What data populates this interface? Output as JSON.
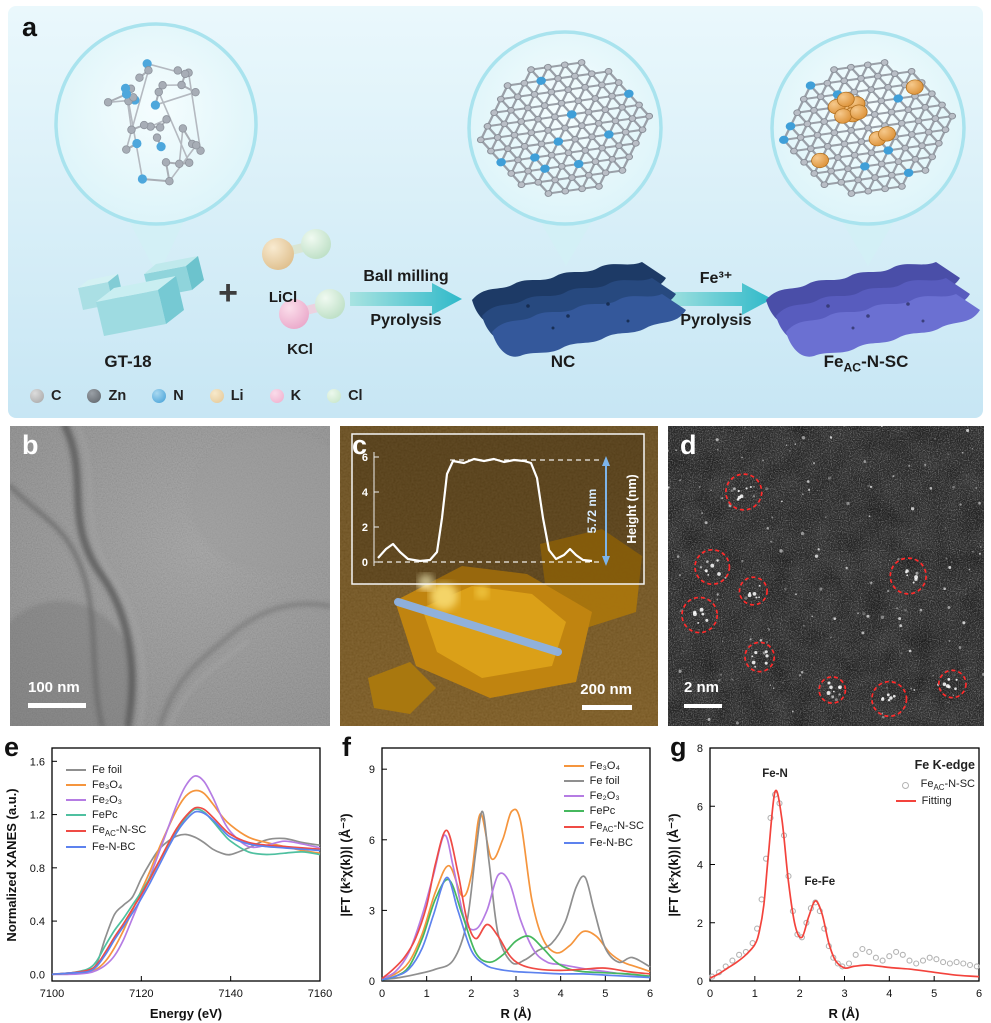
{
  "panel_a": {
    "letter": "a",
    "labels": {
      "precursor": "GT-18",
      "plus": "+",
      "salt1": "LiCl",
      "salt2": "KCl",
      "arrow1_top": "Ball milling",
      "arrow1_bottom": "Pyrolysis",
      "intermediate": "NC",
      "arrow2_top": "Fe³⁺",
      "arrow2_bottom": "Pyrolysis",
      "product": "Fe~AC~-N-SC"
    },
    "legend": [
      {
        "label": "C",
        "color": "#a3a3a3",
        "hi": "#dcdcdc"
      },
      {
        "label": "Zn",
        "color": "#5c6268",
        "hi": "#9aa0a6"
      },
      {
        "label": "N",
        "color": "#3f9ed6",
        "hi": "#a8d8f0"
      },
      {
        "label": "Li",
        "color": "#e3c694",
        "hi": "#f7e9cb"
      },
      {
        "label": "K",
        "color": "#eeaccb",
        "hi": "#fadcea"
      },
      {
        "label": "Cl",
        "color": "#c4e4c6",
        "hi": "#ecf8ed"
      }
    ]
  },
  "panel_b": {
    "letter": "b",
    "scale_bar": "100 nm"
  },
  "panel_c": {
    "letter": "c",
    "scale_bar": "200 nm",
    "inset": {
      "annotation": "5.72 nm",
      "axis_label": "Height (nm)",
      "ticks": [
        "6",
        "4",
        "2",
        "0"
      ]
    }
  },
  "panel_d": {
    "letter": "d",
    "scale_bar": "2 nm",
    "markers": [
      [
        0.24,
        0.22
      ],
      [
        0.14,
        0.47
      ],
      [
        0.1,
        0.63
      ],
      [
        0.27,
        0.55
      ],
      [
        0.29,
        0.77
      ],
      [
        0.52,
        0.88
      ],
      [
        0.7,
        0.91
      ],
      [
        0.9,
        0.86
      ],
      [
        0.76,
        0.5
      ]
    ]
  },
  "panel_letters": {
    "e": "e",
    "f": "f",
    "g": "g"
  },
  "chart_data": [
    {
      "id": "e",
      "type": "line",
      "title": "",
      "xlabel": "Energy (eV)",
      "ylabel": "Normalized XANES (a.u.)",
      "xlim": [
        7100,
        7160
      ],
      "ylim": [
        -0.05,
        1.7
      ],
      "xticks": [
        7100,
        7120,
        7140,
        7160
      ],
      "xtick_labels": [
        "7100",
        "7120",
        "7140",
        "7160"
      ],
      "yticks": [
        0.0,
        0.4,
        0.8,
        1.2,
        1.6
      ],
      "ytick_labels": [
        "0.0",
        "0.4",
        "0.8",
        "1.2",
        "1.6"
      ],
      "legend_position": "top-left",
      "grid": false,
      "series": [
        {
          "name": "Fe foil",
          "color": "#8f8f8f",
          "type": "line",
          "x": [
            7100,
            7104,
            7108,
            7110,
            7112,
            7114,
            7116,
            7118,
            7120,
            7122,
            7124,
            7126,
            7128,
            7130,
            7132,
            7134,
            7136,
            7138,
            7140,
            7144,
            7148,
            7152,
            7156,
            7160
          ],
          "y": [
            0.0,
            0.01,
            0.03,
            0.08,
            0.28,
            0.45,
            0.52,
            0.58,
            0.72,
            0.84,
            0.94,
            1.0,
            1.04,
            1.05,
            1.03,
            0.99,
            0.94,
            0.91,
            0.9,
            0.95,
            1.01,
            1.02,
            0.99,
            0.97
          ]
        },
        {
          "name": "Fe₃O₄",
          "color": "#f5953d",
          "type": "line",
          "x": [
            7100,
            7104,
            7108,
            7110,
            7112,
            7114,
            7116,
            7118,
            7120,
            7122,
            7124,
            7126,
            7128,
            7130,
            7132,
            7134,
            7136,
            7138,
            7140,
            7144,
            7148,
            7152,
            7156,
            7160
          ],
          "y": [
            0.0,
            0.01,
            0.02,
            0.04,
            0.1,
            0.2,
            0.33,
            0.48,
            0.63,
            0.78,
            0.95,
            1.1,
            1.24,
            1.34,
            1.38,
            1.36,
            1.28,
            1.19,
            1.12,
            1.03,
            0.99,
            0.96,
            0.93,
            0.91
          ]
        },
        {
          "name": "Fe₂O₃",
          "color": "#b57ce3",
          "type": "line",
          "x": [
            7100,
            7104,
            7108,
            7110,
            7112,
            7114,
            7116,
            7118,
            7120,
            7122,
            7124,
            7126,
            7128,
            7130,
            7132,
            7134,
            7136,
            7138,
            7140,
            7144,
            7148,
            7152,
            7156,
            7160
          ],
          "y": [
            0.0,
            0.0,
            0.01,
            0.03,
            0.07,
            0.14,
            0.26,
            0.42,
            0.58,
            0.74,
            0.92,
            1.1,
            1.28,
            1.42,
            1.49,
            1.45,
            1.33,
            1.18,
            1.07,
            0.96,
            0.97,
            1.0,
            0.98,
            0.95
          ]
        },
        {
          "name": "FePc",
          "color": "#4fc0a0",
          "type": "line",
          "x": [
            7100,
            7104,
            7108,
            7110,
            7112,
            7114,
            7116,
            7118,
            7120,
            7122,
            7124,
            7126,
            7128,
            7130,
            7132,
            7134,
            7136,
            7138,
            7140,
            7144,
            7148,
            7152,
            7156,
            7160
          ],
          "y": [
            0.0,
            0.01,
            0.04,
            0.1,
            0.22,
            0.33,
            0.42,
            0.52,
            0.62,
            0.73,
            0.85,
            0.97,
            1.08,
            1.18,
            1.24,
            1.22,
            1.15,
            1.07,
            1.0,
            0.92,
            0.9,
            0.91,
            0.92,
            0.9
          ]
        },
        {
          "name": "Fe~AC~-N-SC",
          "color": "#ef4b45",
          "type": "line",
          "x": [
            7100,
            7104,
            7108,
            7110,
            7112,
            7114,
            7116,
            7118,
            7120,
            7122,
            7124,
            7126,
            7128,
            7130,
            7132,
            7134,
            7136,
            7138,
            7140,
            7144,
            7148,
            7152,
            7156,
            7160
          ],
          "y": [
            0.0,
            0.01,
            0.03,
            0.07,
            0.17,
            0.28,
            0.38,
            0.49,
            0.6,
            0.72,
            0.85,
            0.98,
            1.1,
            1.19,
            1.25,
            1.24,
            1.18,
            1.11,
            1.05,
            0.99,
            0.97,
            0.96,
            0.95,
            0.94
          ]
        },
        {
          "name": "Fe-N-BC",
          "color": "#5d82ee",
          "type": "line",
          "x": [
            7100,
            7104,
            7108,
            7110,
            7112,
            7114,
            7116,
            7118,
            7120,
            7122,
            7124,
            7126,
            7128,
            7130,
            7132,
            7134,
            7136,
            7138,
            7140,
            7144,
            7148,
            7152,
            7156,
            7160
          ],
          "y": [
            0.0,
            0.01,
            0.02,
            0.06,
            0.15,
            0.26,
            0.36,
            0.46,
            0.57,
            0.69,
            0.82,
            0.95,
            1.07,
            1.16,
            1.22,
            1.21,
            1.16,
            1.09,
            1.03,
            0.98,
            0.96,
            0.95,
            0.94,
            0.93
          ]
        }
      ]
    },
    {
      "id": "f",
      "type": "line",
      "title": "",
      "xlabel": "R (Å)",
      "ylabel": "|FT (k²χ(k))| (Å⁻³)",
      "xlim": [
        0,
        6
      ],
      "ylim": [
        0,
        9.9
      ],
      "xticks": [
        0,
        1,
        2,
        3,
        4,
        5,
        6
      ],
      "xtick_labels": [
        "0",
        "1",
        "2",
        "3",
        "4",
        "5",
        "6"
      ],
      "yticks": [
        0,
        3,
        6,
        9
      ],
      "ytick_labels": [
        "0",
        "3",
        "6",
        "9"
      ],
      "legend_position": "top-right",
      "grid": false,
      "series": [
        {
          "name": "Fe₃O₄",
          "color": "#f5953d",
          "type": "line",
          "x": [
            0,
            0.3,
            0.6,
            0.9,
            1.2,
            1.5,
            1.8,
            2.0,
            2.2,
            2.45,
            2.7,
            2.9,
            3.1,
            3.35,
            3.6,
            3.9,
            4.2,
            4.5,
            4.8,
            5.1,
            5.4,
            5.7,
            6.0
          ],
          "y": [
            0.1,
            0.3,
            0.8,
            2.0,
            3.8,
            4.9,
            3.6,
            4.5,
            7.1,
            5.2,
            6.0,
            7.2,
            6.8,
            3.5,
            1.8,
            1.2,
            1.5,
            2.1,
            1.9,
            1.2,
            0.8,
            0.6,
            0.4
          ]
        },
        {
          "name": "Fe foil",
          "color": "#8f8f8f",
          "type": "line",
          "x": [
            0,
            0.4,
            0.8,
            1.2,
            1.6,
            1.9,
            2.1,
            2.25,
            2.4,
            2.6,
            2.9,
            3.2,
            3.5,
            3.8,
            4.1,
            4.35,
            4.55,
            4.75,
            5.0,
            5.3,
            5.6,
            6.0
          ],
          "y": [
            0.05,
            0.15,
            0.3,
            0.5,
            0.9,
            2.5,
            5.5,
            7.2,
            5.0,
            2.0,
            0.8,
            0.9,
            1.3,
            1.6,
            2.5,
            4.0,
            4.4,
            3.0,
            1.4,
            0.8,
            1.0,
            0.6
          ]
        },
        {
          "name": "Fe₂O₃",
          "color": "#b57ce3",
          "type": "line",
          "x": [
            0,
            0.3,
            0.6,
            0.9,
            1.15,
            1.4,
            1.6,
            1.85,
            2.1,
            2.35,
            2.6,
            2.85,
            3.1,
            3.4,
            3.7,
            4.0,
            4.3,
            4.6,
            5.0,
            5.4,
            6.0
          ],
          "y": [
            0.1,
            0.4,
            1.2,
            2.8,
            4.5,
            6.2,
            4.8,
            2.6,
            2.2,
            3.0,
            4.5,
            4.2,
            2.6,
            1.3,
            0.8,
            0.7,
            0.6,
            0.5,
            0.4,
            0.3,
            0.2
          ]
        },
        {
          "name": "FePc",
          "color": "#46b85e",
          "type": "line",
          "x": [
            0,
            0.3,
            0.6,
            0.9,
            1.2,
            1.5,
            1.8,
            2.1,
            2.4,
            2.7,
            3.0,
            3.3,
            3.6,
            3.9,
            4.2,
            4.5,
            5.0,
            5.5,
            6.0
          ],
          "y": [
            0.05,
            0.2,
            0.6,
            1.8,
            3.5,
            4.3,
            2.8,
            1.2,
            0.8,
            1.1,
            1.7,
            1.9,
            1.4,
            0.8,
            0.5,
            0.4,
            0.35,
            0.3,
            0.2
          ]
        },
        {
          "name": "Fe~AC~-N-SC",
          "color": "#ef4b45",
          "type": "line",
          "x": [
            0,
            0.25,
            0.5,
            0.75,
            1.0,
            1.2,
            1.45,
            1.7,
            1.9,
            2.1,
            2.35,
            2.6,
            2.85,
            3.1,
            3.5,
            4.0,
            4.5,
            5.0,
            5.5,
            6.0
          ],
          "y": [
            0.1,
            0.5,
            1.0,
            1.8,
            3.2,
            5.0,
            6.4,
            4.6,
            2.6,
            1.8,
            2.4,
            1.9,
            1.1,
            0.7,
            0.5,
            0.45,
            0.5,
            0.55,
            0.4,
            0.3
          ]
        },
        {
          "name": "Fe-N-BC",
          "color": "#5d82ee",
          "type": "line",
          "x": [
            0,
            0.3,
            0.6,
            0.9,
            1.15,
            1.45,
            1.7,
            2.0,
            2.3,
            2.6,
            3.0,
            3.5,
            4.0,
            4.5,
            5.0,
            5.5,
            6.0
          ],
          "y": [
            0.05,
            0.2,
            0.5,
            1.4,
            2.8,
            4.4,
            3.0,
            1.3,
            0.7,
            0.5,
            0.4,
            0.35,
            0.3,
            0.3,
            0.25,
            0.2,
            0.15
          ]
        }
      ]
    },
    {
      "id": "g",
      "type": "line",
      "title": "",
      "corner_title": "Fe K-edge",
      "xlabel": "R (Å)",
      "ylabel": "|FT (k²χ(k))| (Å⁻³)",
      "xlim": [
        0,
        6
      ],
      "ylim": [
        0,
        8
      ],
      "xticks": [
        0,
        1,
        2,
        3,
        4,
        5,
        6
      ],
      "xtick_labels": [
        "0",
        "1",
        "2",
        "3",
        "4",
        "5",
        "6"
      ],
      "yticks": [
        0,
        2,
        4,
        6,
        8
      ],
      "ytick_labels": [
        "0",
        "2",
        "4",
        "6",
        "8"
      ],
      "legend_position": "top-right",
      "grid": false,
      "annotations": [
        {
          "text": "Fe-N",
          "x": 1.45,
          "y": 7.0
        },
        {
          "text": "Fe-Fe",
          "x": 2.45,
          "y": 3.3
        }
      ],
      "series": [
        {
          "name": "Fe~AC~-N-SC",
          "color": "#b3b3b3",
          "type": "scatter",
          "x": [
            0.05,
            0.2,
            0.35,
            0.5,
            0.65,
            0.8,
            0.95,
            1.05,
            1.15,
            1.25,
            1.35,
            1.45,
            1.55,
            1.65,
            1.75,
            1.85,
            1.95,
            2.05,
            2.15,
            2.25,
            2.35,
            2.45,
            2.55,
            2.65,
            2.75,
            2.85,
            2.95,
            3.1,
            3.25,
            3.4,
            3.55,
            3.7,
            3.85,
            4.0,
            4.15,
            4.3,
            4.45,
            4.6,
            4.75,
            4.9,
            5.05,
            5.2,
            5.35,
            5.5,
            5.65,
            5.8,
            5.95
          ],
          "y": [
            0.15,
            0.3,
            0.5,
            0.7,
            0.9,
            1.0,
            1.3,
            1.8,
            2.8,
            4.2,
            5.6,
            6.4,
            6.1,
            5.0,
            3.6,
            2.4,
            1.6,
            1.5,
            2.0,
            2.5,
            2.7,
            2.4,
            1.8,
            1.2,
            0.8,
            0.6,
            0.5,
            0.6,
            0.9,
            1.1,
            1.0,
            0.8,
            0.7,
            0.85,
            1.0,
            0.9,
            0.7,
            0.6,
            0.7,
            0.8,
            0.75,
            0.65,
            0.6,
            0.65,
            0.6,
            0.55,
            0.5
          ]
        },
        {
          "name": "Fitting",
          "color": "#f3433c",
          "type": "line",
          "x": [
            0,
            0.2,
            0.4,
            0.6,
            0.8,
            1.0,
            1.1,
            1.2,
            1.3,
            1.45,
            1.6,
            1.75,
            1.9,
            2.05,
            2.2,
            2.35,
            2.5,
            2.65,
            2.8,
            3.0,
            3.2,
            3.5,
            3.8,
            4.1,
            4.5,
            5.0,
            5.5,
            6.0
          ],
          "y": [
            0.1,
            0.25,
            0.45,
            0.65,
            0.9,
            1.25,
            1.7,
            2.6,
            4.3,
            6.5,
            5.6,
            3.4,
            1.9,
            1.5,
            2.2,
            2.75,
            2.3,
            1.3,
            0.7,
            0.45,
            0.5,
            0.55,
            0.5,
            0.45,
            0.4,
            0.3,
            0.2,
            0.15
          ]
        }
      ]
    }
  ]
}
